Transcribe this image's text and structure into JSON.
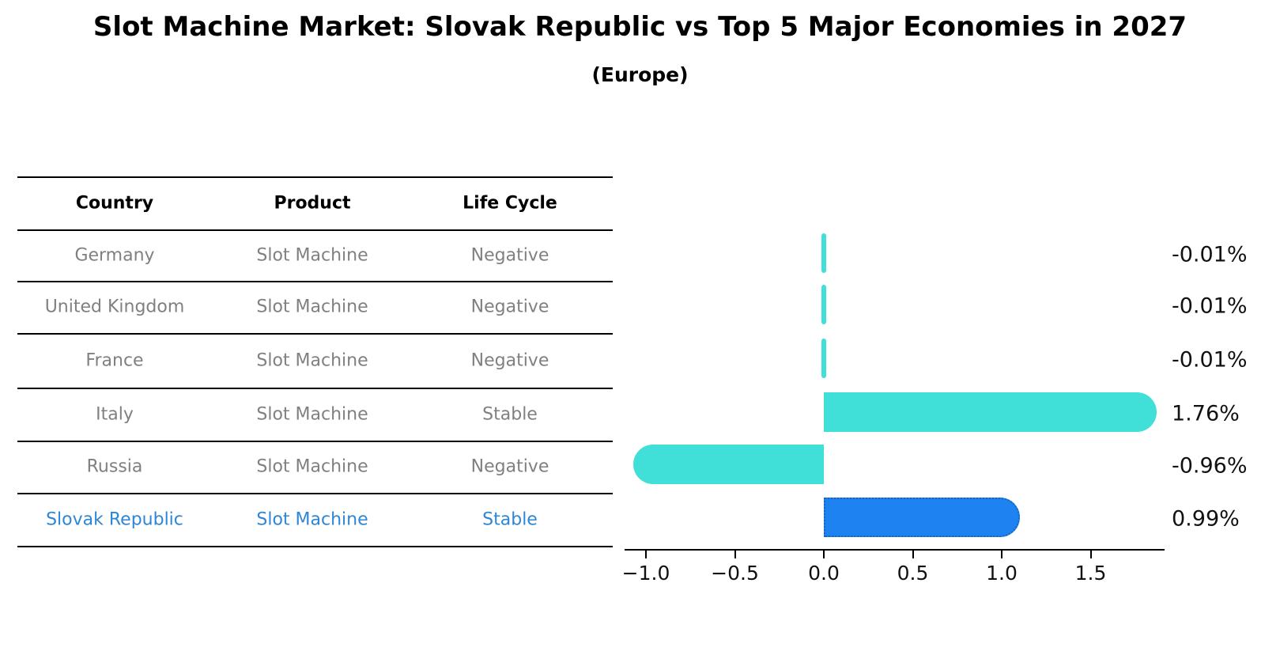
{
  "title": "Slot Machine Market: Slovak Republic vs Top 5 Major Economies in 2027",
  "subtitle": "(Europe)",
  "colors": {
    "bar_cyan": "#40E0D8",
    "bar_blue_fill": "#1E82F0",
    "bar_blue_border": "#1565C0",
    "highlight_text": "#2E86D6",
    "row_text": "#808080",
    "header_text": "#000000",
    "axis": "#000000"
  },
  "table": {
    "headers": [
      "Country",
      "Product",
      "Life Cycle"
    ],
    "rows": [
      {
        "country": "Germany",
        "product": "Slot Machine",
        "life_cycle": "Negative",
        "highlight": false
      },
      {
        "country": "United Kingdom",
        "product": "Slot Machine",
        "life_cycle": "Negative",
        "highlight": false
      },
      {
        "country": "France",
        "product": "Slot Machine",
        "life_cycle": "Negative",
        "highlight": false
      },
      {
        "country": "Italy",
        "product": "Slot Machine",
        "life_cycle": "Stable",
        "highlight": false
      },
      {
        "country": "Russia",
        "product": "Slot Machine",
        "life_cycle": "Negative",
        "highlight": false
      },
      {
        "country": "Slovak Republic",
        "product": "Slot Machine",
        "life_cycle": "Stable",
        "highlight": true
      }
    ]
  },
  "chart_data": {
    "type": "bar",
    "orientation": "horizontal",
    "title": "Slot Machine Market: Slovak Republic vs Top 5 Major Economies in 2027 (Europe)",
    "categories": [
      "Germany",
      "United Kingdom",
      "France",
      "Italy",
      "Russia",
      "Slovak Republic"
    ],
    "values": [
      -0.01,
      -0.01,
      -0.01,
      1.76,
      -0.96,
      0.99
    ],
    "value_labels": [
      "-0.01%",
      "-0.01%",
      "-0.01%",
      "1.76%",
      "-0.96%",
      "0.99%"
    ],
    "unit": "%",
    "highlight_category": "Slovak Republic",
    "bar_colors": [
      "#40E0D8",
      "#40E0D8",
      "#40E0D8",
      "#40E0D8",
      "#40E0D8",
      "#1E82F0"
    ],
    "xlim": [
      -1.12,
      1.92
    ],
    "x_ticks": [
      -1.0,
      -0.5,
      0.0,
      0.5,
      1.0,
      1.5
    ],
    "x_tick_labels": [
      "−1.0",
      "−0.5",
      "0.0",
      "0.5",
      "1.0",
      "1.5"
    ],
    "grid": false,
    "legend": "none"
  }
}
